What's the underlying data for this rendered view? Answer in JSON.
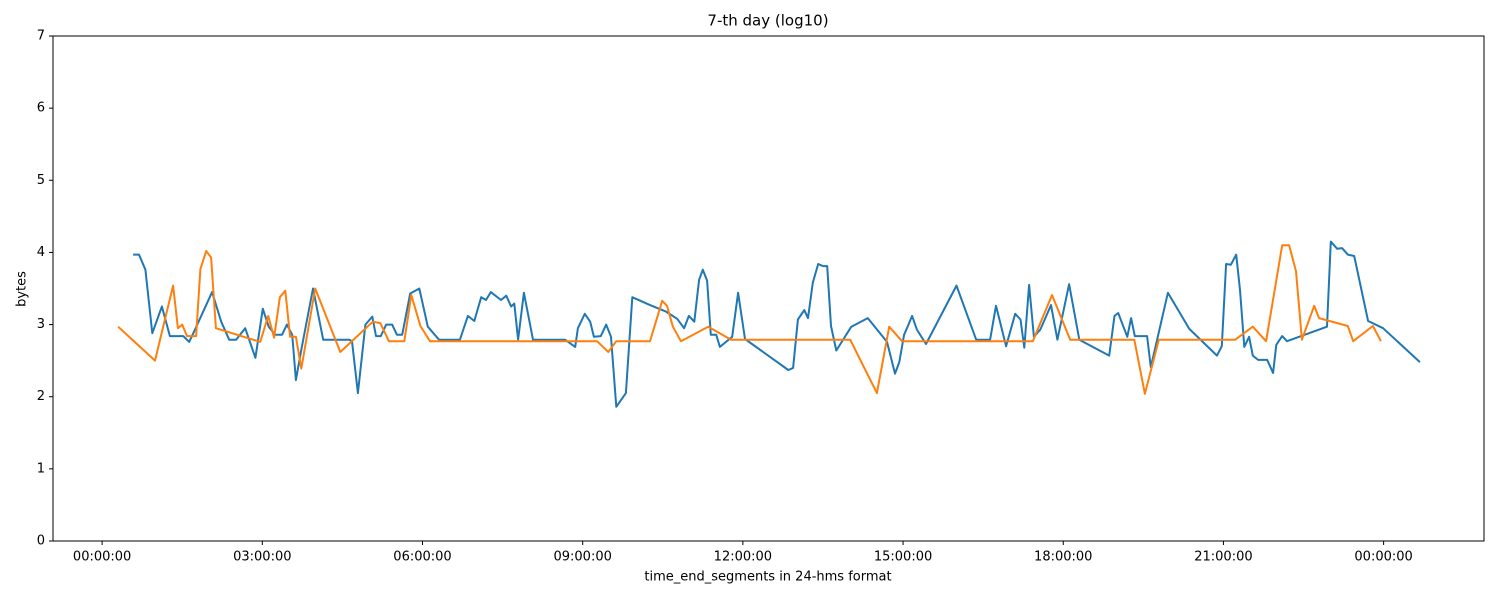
{
  "chart_data": {
    "type": "line",
    "title": "7-th day (log10)",
    "x_label": "time_end_segments in 24-hms format",
    "y_label": "bytes",
    "xlim": [
      -0.92,
      25.88
    ],
    "ylim": [
      0,
      7
    ],
    "xticks": [
      {
        "value": 0,
        "label": "00:00:00"
      },
      {
        "value": 3,
        "label": "03:00:00"
      },
      {
        "value": 6,
        "label": "06:00:00"
      },
      {
        "value": 9,
        "label": "09:00:00"
      },
      {
        "value": 12,
        "label": "12:00:00"
      },
      {
        "value": 15,
        "label": "15:00:00"
      },
      {
        "value": 18,
        "label": "18:00:00"
      },
      {
        "value": 21,
        "label": "21:00:00"
      },
      {
        "value": 24,
        "label": "00:00:00"
      }
    ],
    "yticks": [
      0,
      1,
      2,
      3,
      4,
      5,
      6,
      7
    ],
    "grid": false,
    "series": [
      {
        "color": "#1f77b4",
        "x": [
          0.58,
          0.69,
          0.81,
          0.94,
          1.12,
          1.27,
          1.52,
          1.63,
          1.74,
          2.06,
          2.23,
          2.38,
          2.51,
          2.68,
          2.87,
          3.01,
          3.12,
          3.24,
          3.37,
          3.46,
          3.56,
          3.63,
          3.73,
          3.95,
          4.14,
          4.63,
          4.68,
          4.79,
          4.93,
          5.06,
          5.13,
          5.22,
          5.32,
          5.43,
          5.52,
          5.62,
          5.77,
          5.94,
          6.1,
          6.31,
          6.7,
          6.85,
          6.97,
          7.1,
          7.19,
          7.28,
          7.47,
          7.57,
          7.66,
          7.72,
          7.79,
          7.9,
          8.07,
          8.67,
          8.86,
          8.91,
          9.04,
          9.14,
          9.21,
          9.34,
          9.44,
          9.53,
          9.63,
          9.81,
          9.93,
          10.26,
          10.56,
          10.77,
          10.9,
          10.99,
          11.09,
          11.18,
          11.25,
          11.33,
          11.4,
          11.5,
          11.57,
          11.8,
          11.91,
          12.04,
          12.85,
          12.94,
          13.03,
          13.15,
          13.22,
          13.31,
          13.41,
          13.5,
          13.58,
          13.65,
          13.75,
          14.03,
          14.34,
          14.7,
          14.85,
          14.93,
          15.02,
          15.09,
          15.17,
          15.26,
          15.43,
          16.0,
          16.37,
          16.63,
          16.74,
          16.93,
          17.1,
          17.2,
          17.27,
          17.36,
          17.45,
          17.57,
          17.77,
          17.89,
          18.11,
          18.3,
          18.86,
          18.96,
          19.03,
          19.2,
          19.27,
          19.34,
          19.57,
          19.64,
          19.96,
          20.36,
          20.88,
          20.97,
          21.05,
          21.14,
          21.24,
          21.31,
          21.39,
          21.48,
          21.55,
          21.65,
          21.82,
          21.93,
          21.99,
          22.1,
          22.19,
          22.94,
          23.01,
          23.13,
          23.22,
          23.33,
          23.45,
          23.71,
          23.99,
          24.68
        ],
        "values": [
          3.97,
          3.97,
          3.76,
          2.88,
          3.25,
          2.84,
          2.84,
          2.76,
          2.93,
          3.45,
          3.04,
          2.79,
          2.79,
          2.95,
          2.54,
          3.22,
          2.97,
          2.86,
          2.86,
          3.0,
          2.86,
          2.23,
          2.65,
          3.5,
          2.79,
          2.79,
          2.77,
          2.05,
          3.0,
          3.11,
          2.84,
          2.84,
          3.0,
          3.0,
          2.86,
          2.86,
          3.43,
          3.5,
          2.97,
          2.79,
          2.79,
          3.12,
          3.05,
          3.38,
          3.34,
          3.45,
          3.34,
          3.4,
          3.25,
          3.29,
          2.79,
          3.44,
          2.79,
          2.79,
          2.69,
          2.95,
          3.15,
          3.04,
          2.83,
          2.84,
          3.0,
          2.83,
          1.86,
          2.05,
          3.38,
          3.27,
          3.18,
          3.08,
          2.95,
          3.12,
          3.04,
          3.62,
          3.76,
          3.61,
          2.86,
          2.86,
          2.69,
          2.83,
          3.44,
          2.8,
          2.37,
          2.4,
          3.07,
          3.2,
          3.09,
          3.58,
          3.84,
          3.81,
          3.81,
          2.98,
          2.64,
          2.97,
          3.09,
          2.76,
          2.32,
          2.48,
          2.86,
          2.98,
          3.12,
          2.93,
          2.73,
          3.54,
          2.79,
          2.79,
          3.26,
          2.7,
          3.15,
          3.07,
          2.68,
          3.55,
          2.83,
          2.93,
          3.27,
          2.79,
          3.56,
          2.79,
          2.57,
          3.12,
          3.16,
          2.83,
          3.09,
          2.84,
          2.84,
          2.41,
          3.44,
          2.94,
          2.57,
          2.7,
          3.84,
          3.83,
          3.97,
          3.48,
          2.69,
          2.83,
          2.57,
          2.51,
          2.51,
          2.33,
          2.72,
          2.84,
          2.77,
          2.97,
          4.15,
          4.05,
          4.06,
          3.97,
          3.95,
          3.05,
          2.95,
          2.48
        ]
      },
      {
        "color": "#ff7f0e",
        "x": [
          0.3,
          0.99,
          1.33,
          1.42,
          1.5,
          1.59,
          1.76,
          1.84,
          1.95,
          2.04,
          2.13,
          2.96,
          3.11,
          3.22,
          3.33,
          3.43,
          3.52,
          3.63,
          3.73,
          3.99,
          4.46,
          5.07,
          5.21,
          5.37,
          5.66,
          5.79,
          5.96,
          6.14,
          9.27,
          9.48,
          9.63,
          10.26,
          10.49,
          10.58,
          10.69,
          10.84,
          11.35,
          11.78,
          14.01,
          14.51,
          14.74,
          14.98,
          17.43,
          17.79,
          18.13,
          19.33,
          19.53,
          19.79,
          21.22,
          21.55,
          21.8,
          22.1,
          22.23,
          22.36,
          22.47,
          22.7,
          22.79,
          23.33,
          23.43,
          23.8,
          23.95
        ],
        "values": [
          2.97,
          2.5,
          3.54,
          2.95,
          3.0,
          2.84,
          2.84,
          3.77,
          4.02,
          3.93,
          2.95,
          2.76,
          3.12,
          2.82,
          3.38,
          3.47,
          2.83,
          2.83,
          2.39,
          3.5,
          2.62,
          3.04,
          3.02,
          2.77,
          2.77,
          3.41,
          2.98,
          2.77,
          2.77,
          2.62,
          2.77,
          2.77,
          3.33,
          3.26,
          2.97,
          2.77,
          2.97,
          2.79,
          2.79,
          2.05,
          2.97,
          2.77,
          2.77,
          3.41,
          2.79,
          2.79,
          2.04,
          2.79,
          2.79,
          2.97,
          2.77,
          4.1,
          4.1,
          3.74,
          2.79,
          3.26,
          3.09,
          2.98,
          2.77,
          2.98,
          2.77
        ]
      }
    ]
  }
}
